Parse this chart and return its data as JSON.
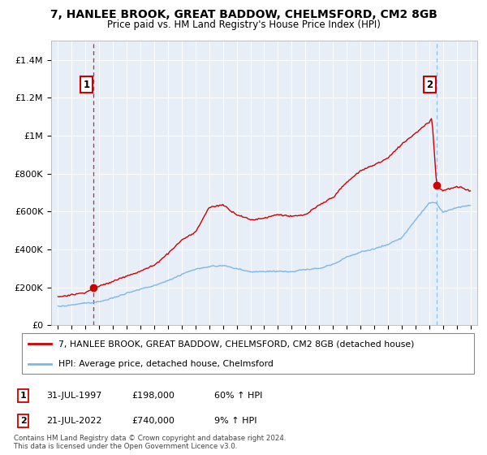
{
  "title": "7, HANLEE BROOK, GREAT BADDOW, CHELMSFORD, CM2 8GB",
  "subtitle": "Price paid vs. HM Land Registry's House Price Index (HPI)",
  "legend_line1": "7, HANLEE BROOK, GREAT BADDOW, CHELMSFORD, CM2 8GB (detached house)",
  "legend_line2": "HPI: Average price, detached house, Chelmsford",
  "annotation1_label": "1",
  "annotation1_date": "31-JUL-1997",
  "annotation1_price": "£198,000",
  "annotation1_hpi": "60% ↑ HPI",
  "annotation2_label": "2",
  "annotation2_date": "21-JUL-2022",
  "annotation2_price": "£740,000",
  "annotation2_hpi": "9% ↑ HPI",
  "footer": "Contains HM Land Registry data © Crown copyright and database right 2024.\nThis data is licensed under the Open Government Licence v3.0.",
  "ylim": [
    0,
    1500000
  ],
  "yticks": [
    0,
    200000,
    400000,
    600000,
    800000,
    1000000,
    1200000,
    1400000
  ],
  "ytick_labels": [
    "£0",
    "£200K",
    "£400K",
    "£600K",
    "£800K",
    "£1M",
    "£1.2M",
    "£1.4M"
  ],
  "sale1_year": 1997.58,
  "sale1_price": 198000,
  "sale2_year": 2022.55,
  "sale2_price": 740000,
  "hpi_color": "#7ab8e8",
  "sale_color": "#cc0000",
  "vline1_color": "#cc0000",
  "vline2_color": "#7ab8e8",
  "plot_bg": "#e8eef8",
  "anno_box_color": "#cc0000"
}
